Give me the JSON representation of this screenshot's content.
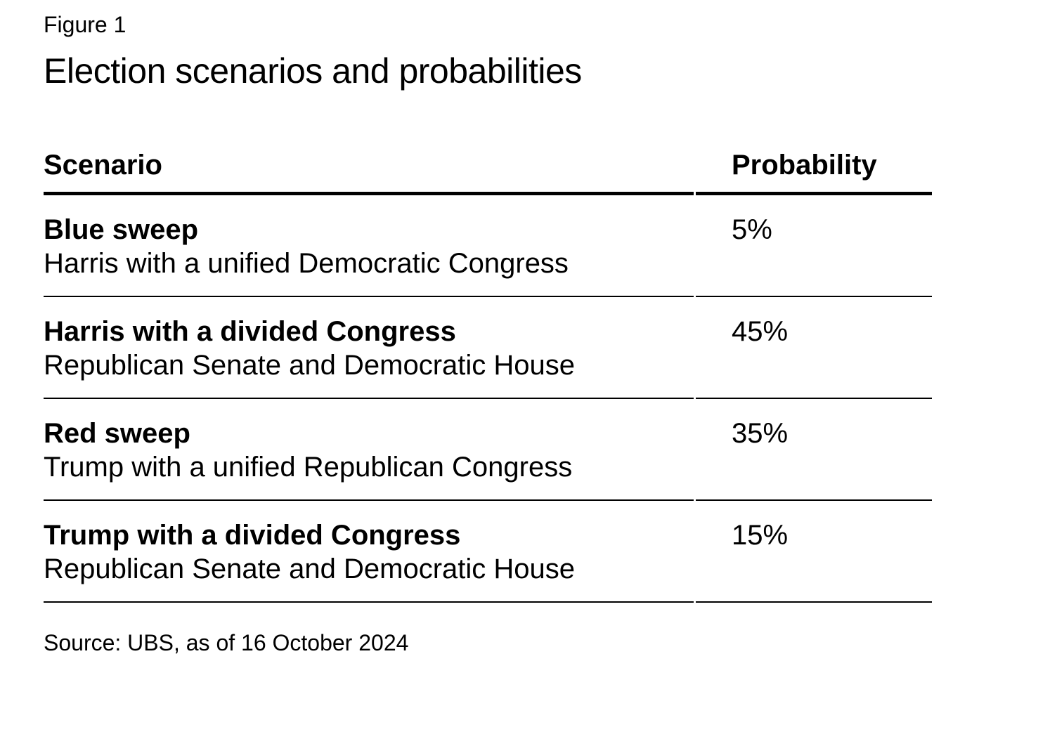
{
  "figure_label": "Figure 1",
  "title": "Election scenarios and probabilities",
  "table": {
    "headers": {
      "scenario": "Scenario",
      "probability": "Probability"
    },
    "rows": [
      {
        "scenario": "Blue sweep",
        "description": "Harris with a unified Democratic Congress",
        "probability": "5%"
      },
      {
        "scenario": "Harris with a divided Congress",
        "description": "Republican Senate and Democratic House",
        "probability": "45%"
      },
      {
        "scenario": "Red sweep",
        "description": "Trump with a unified Republican Congress",
        "probability": "35%"
      },
      {
        "scenario": "Trump with a divided Congress",
        "description": "Republican Senate and Democratic House",
        "probability": "15%"
      }
    ]
  },
  "source": "Source: UBS, as of 16 October 2024",
  "colors": {
    "text": "#000000",
    "background": "#ffffff",
    "rule": "#000000"
  }
}
